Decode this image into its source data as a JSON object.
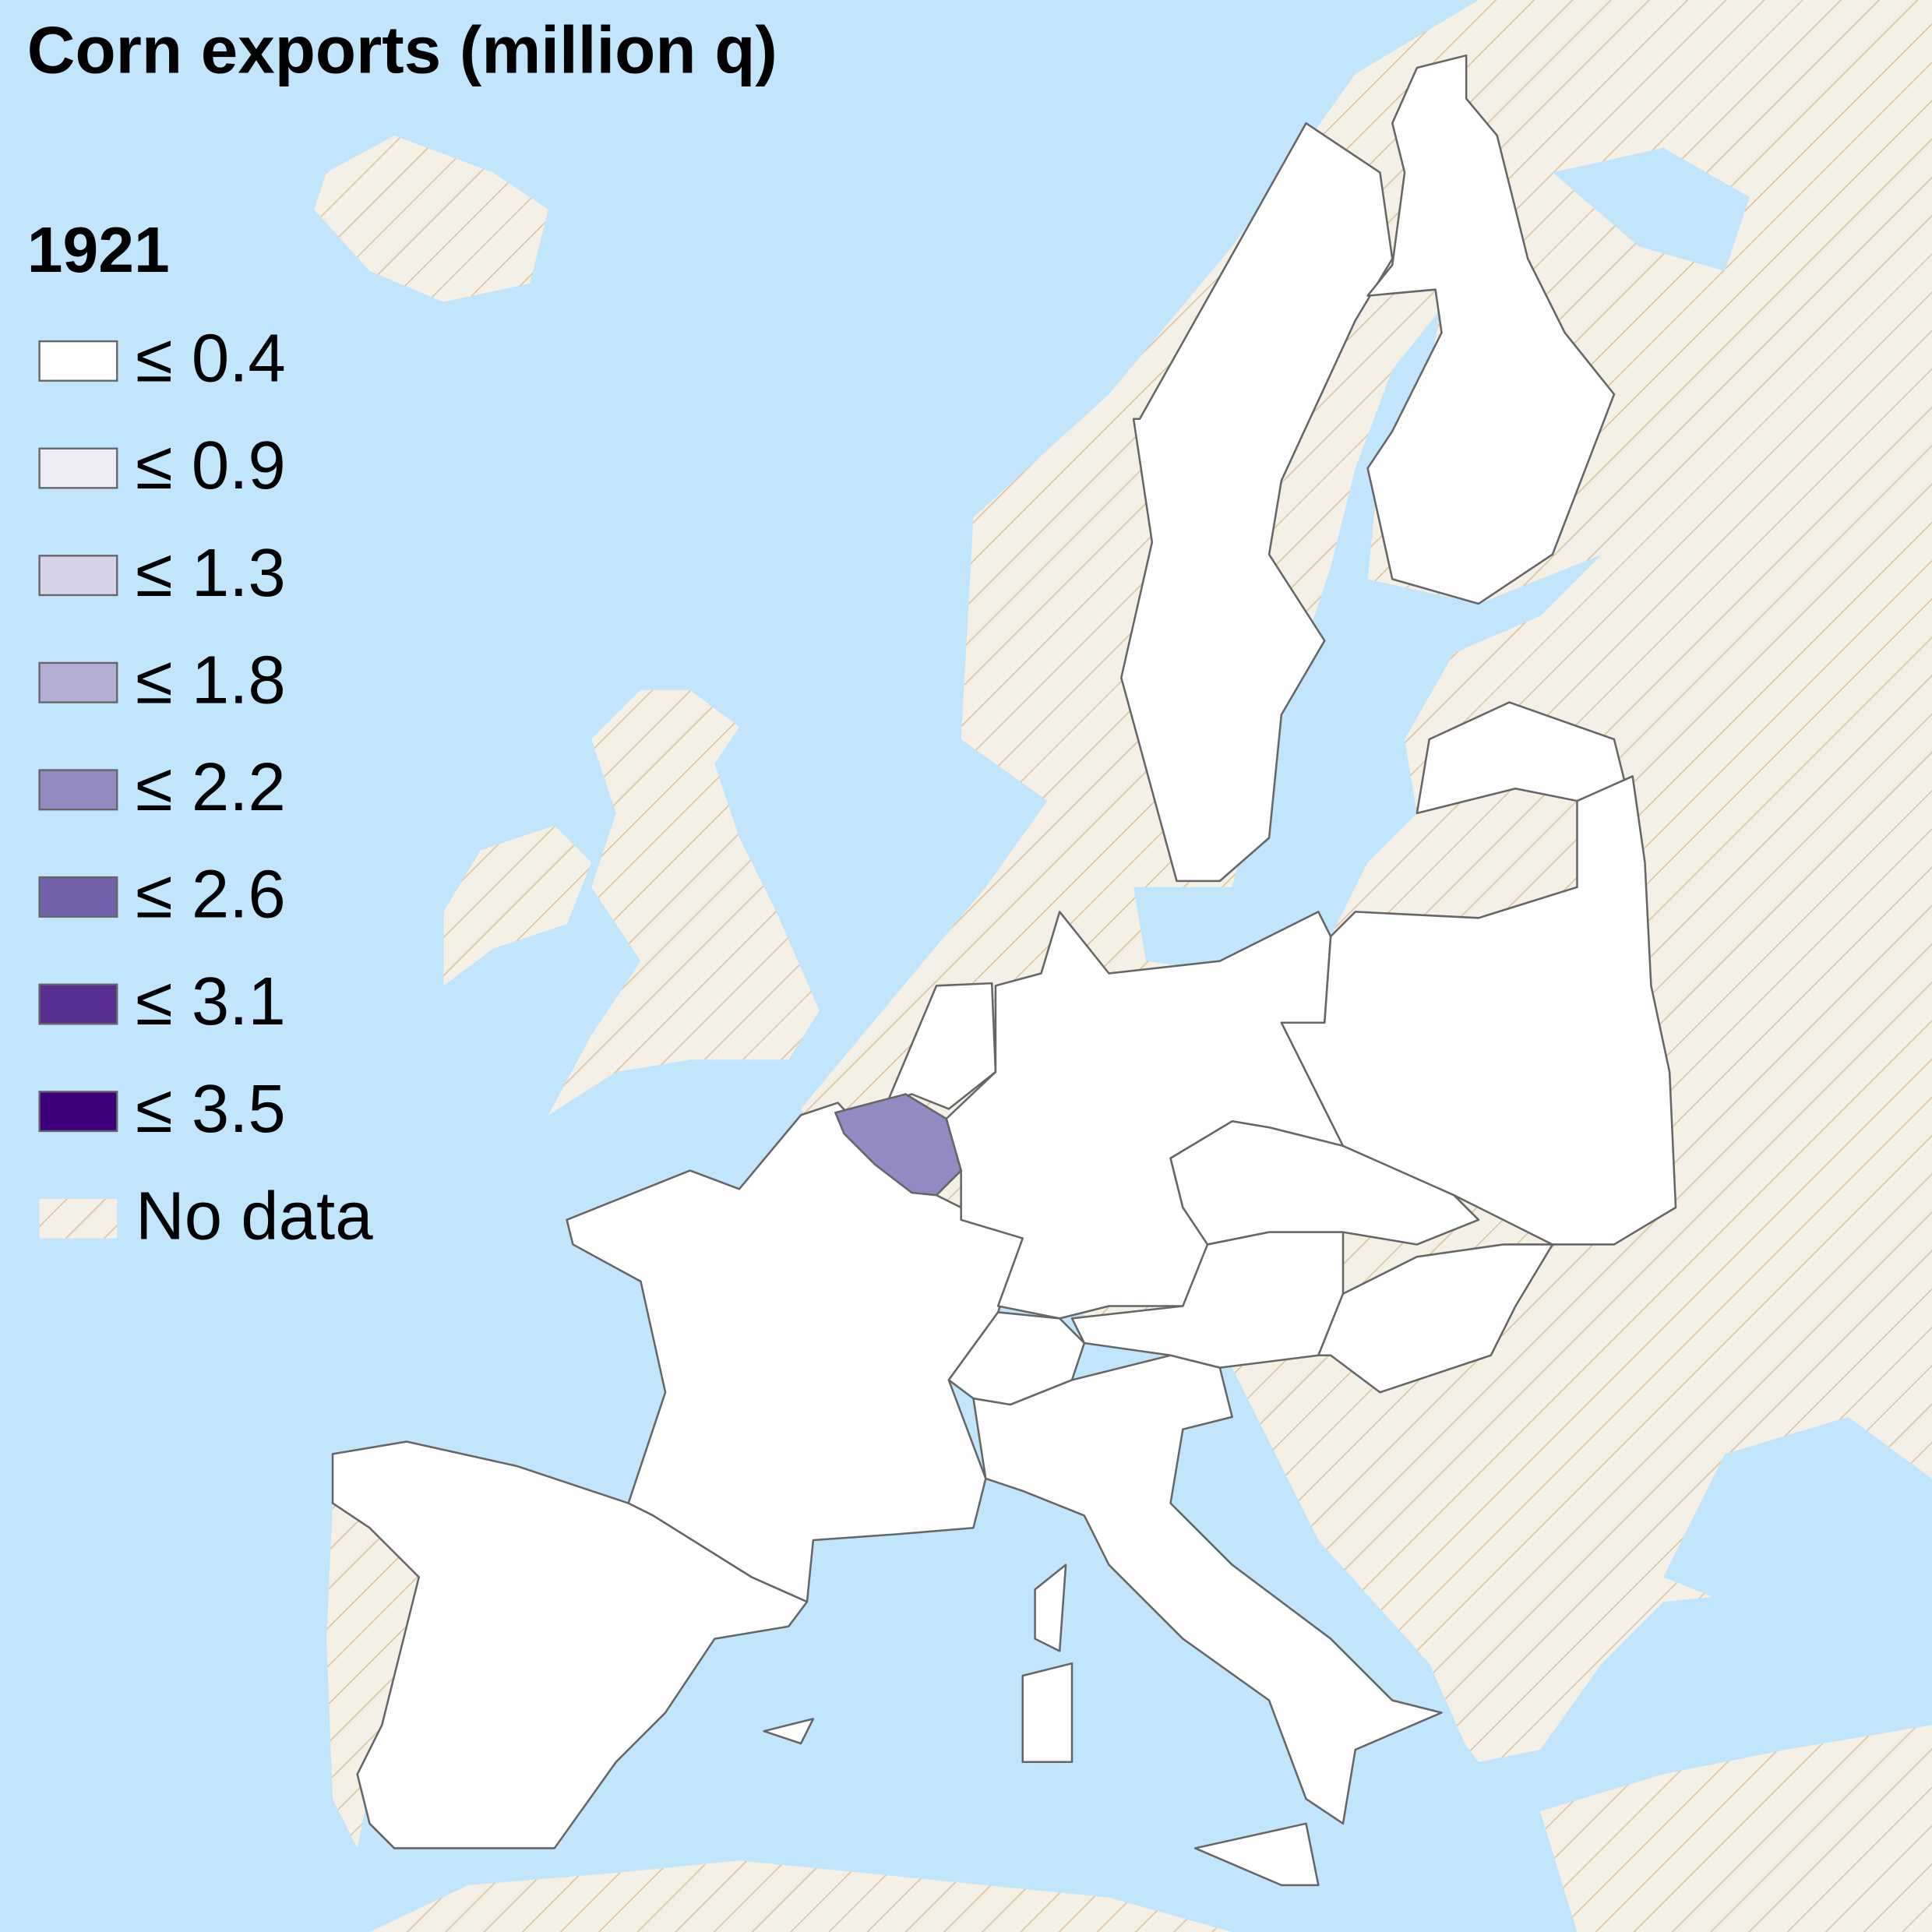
{
  "title": "Corn exports (million q)",
  "legend": {
    "title": "1921",
    "items": [
      {
        "label": "≤ 0.4",
        "color": "#fefefe"
      },
      {
        "label": "≤ 0.9",
        "color": "#eeebf5"
      },
      {
        "label": "≤ 1.3",
        "color": "#d5d3e8"
      },
      {
        "label": "≤ 1.8",
        "color": "#b2afd3"
      },
      {
        "label": "≤ 2.2",
        "color": "#918bc2"
      },
      {
        "label": "≤ 2.6",
        "color": "#7461ad"
      },
      {
        "label": "≤ 3.1",
        "color": "#5a2f92"
      },
      {
        "label": "≤ 3.5",
        "color": "#3f007d"
      }
    ],
    "no_data": {
      "label": "No data"
    }
  }
}
